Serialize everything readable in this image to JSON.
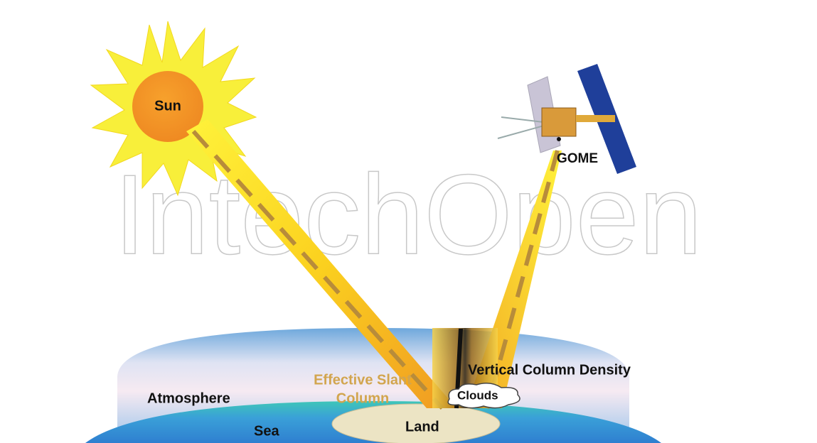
{
  "watermark": "IntechOpen",
  "labels": {
    "sun": "Sun",
    "instrument": "GOME",
    "slant_column": [
      "Effective Slant",
      "Column"
    ],
    "vertical_column": "Vertical Column Density",
    "clouds": "Clouds",
    "atmosphere": "Atmosphere",
    "sea": "Sea",
    "land": "Land"
  }
}
